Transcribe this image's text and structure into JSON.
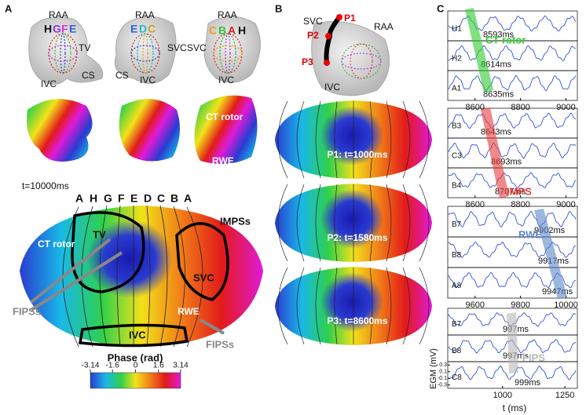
{
  "panel_a": {
    "label": "A",
    "views": [
      {
        "raa": "RAA",
        "letters": [
          "H",
          "G",
          "F",
          "E"
        ],
        "tv": "TV",
        "ivc": "IVC",
        "cs": "CS"
      },
      {
        "raa": "RAA",
        "letters": [
          "E",
          "D",
          "C"
        ],
        "svc": "SVC",
        "cs": "CS",
        "ivc": "IVC"
      },
      {
        "raa": "RAA",
        "letters": [
          "C",
          "B",
          "A",
          "H"
        ],
        "svc": "SVC",
        "ivc": "IVC"
      }
    ],
    "phase_labels": {
      "ct_rotor": "CT rotor",
      "rwe": "RWE"
    },
    "time": "t=10000ms",
    "map": {
      "columns": [
        "A",
        "H",
        "G",
        "F",
        "E",
        "D",
        "C",
        "B",
        "A"
      ],
      "impss": "IMPSs",
      "ct_rotor": "CT rotor",
      "tv": "TV",
      "svc": "SVC",
      "fipss_left": "FIPSs",
      "rwe": "RWE",
      "ivc": "IVC",
      "fipss_right": "FIPSs"
    },
    "colorbar": {
      "title": "Phase (rad)",
      "ticks": [
        -3.14,
        -1.6,
        0,
        1.6,
        3.14
      ]
    }
  },
  "panel_b": {
    "label": "B",
    "svc": "SVC",
    "points": [
      "P1",
      "P2",
      "P3"
    ],
    "raa": "RAA",
    "ivc": "IVC",
    "maps": [
      "P1: t=1000ms",
      "P2: t=1580ms",
      "P3: t=8600ms"
    ]
  },
  "panel_c": {
    "label": "C",
    "groups": [
      {
        "traces": [
          {
            "name": "H1",
            "time": "8593ms"
          },
          {
            "name": "H2",
            "time": "8614ms"
          },
          {
            "name": "A1",
            "time": "8635ms"
          }
        ],
        "annotation": "CT rotor",
        "xlim": [
          8480,
          9050
        ],
        "xticks": [
          8600,
          8800,
          9000
        ]
      },
      {
        "traces": [
          {
            "name": "B3",
            "time": "8643ms"
          },
          {
            "name": "C3",
            "time": "8693ms"
          },
          {
            "name": "B4",
            "time": "8707ms"
          }
        ],
        "annotation": "IMPS",
        "xlim": [
          8480,
          9050
        ],
        "xticks": [
          8600,
          8800,
          9000
        ]
      },
      {
        "traces": [
          {
            "name": "B7",
            "time": "9902ms"
          },
          {
            "name": "B8",
            "time": "9917ms"
          },
          {
            "name": "A8",
            "time": "9947ms"
          }
        ],
        "annotation": "RWE",
        "xlim": [
          9480,
          10050
        ],
        "xticks": [
          9600,
          9800,
          10000
        ]
      },
      {
        "traces": [
          {
            "name": "B7",
            "time": "997ms"
          },
          {
            "name": "B8",
            "time": "997ms"
          },
          {
            "name": "C8",
            "time": "999ms"
          }
        ],
        "annotation": "FIPS",
        "xlim": [
          780,
          1300
        ],
        "xticks": [
          1000,
          1250
        ]
      }
    ],
    "ylim": [
      -0.4,
      0.4
    ],
    "yticks": [
      0.3,
      0.1,
      -0.1,
      -0.3
    ],
    "ylabel": "EGM (mV)",
    "xlabel": "t (ms)"
  }
}
